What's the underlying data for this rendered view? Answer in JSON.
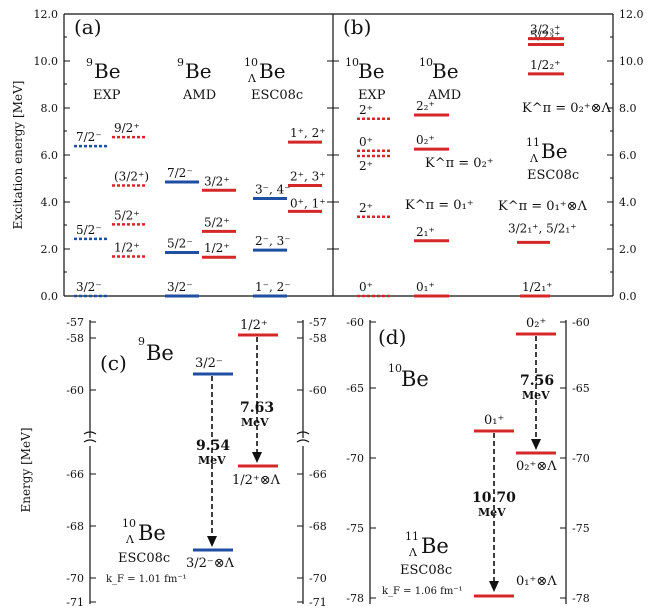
{
  "panel_a": {
    "label": "(a)",
    "ylabel": "Excitation energy [MeV]",
    "col_exp": {
      "name": "9Be",
      "sup": "9",
      "sym": "Be",
      "sub": "EXP"
    },
    "col_amd": {
      "name": "9Be",
      "sup": "9",
      "sym": "Be",
      "sub": "AMD"
    },
    "col_esc": {
      "sup": "10",
      "lam": "Λ",
      "sym": "Be",
      "sub": "ESC08c"
    },
    "yticks": [
      "0.0",
      "2.0",
      "4.0",
      "6.0",
      "8.0",
      "10.0",
      "12.0"
    ],
    "levels": {
      "exp": [
        {
          "label": "3/2⁻",
          "e": 0.0
        },
        {
          "label": "5/2⁻",
          "e": 2.43
        },
        {
          "label": "1/2⁺",
          "e": 1.68
        },
        {
          "label": "5/2⁺",
          "e": 3.05
        },
        {
          "label": "(3/2⁺)",
          "e": 4.7
        },
        {
          "label": "7/2⁻",
          "e": 6.38
        },
        {
          "label": "9/2⁺",
          "e": 6.76
        }
      ],
      "amd": [
        {
          "label": "3/2⁻",
          "e": 0.0
        },
        {
          "label": "5/2⁻",
          "e": 1.85
        },
        {
          "label": "1/2⁺",
          "e": 1.65
        },
        {
          "label": "5/2⁺",
          "e": 2.75
        },
        {
          "label": "3/2⁺",
          "e": 4.5
        },
        {
          "label": "7/2⁻",
          "e": 4.85
        }
      ],
      "esc": [
        {
          "label": "1⁻, 2⁻",
          "e": 0.0
        },
        {
          "label": "2⁻, 3⁻",
          "e": 1.95
        },
        {
          "label": "3⁻, 4⁻",
          "e": 4.15
        },
        {
          "label": "0⁺, 1⁺",
          "e": 3.6
        },
        {
          "label": "2⁺, 3⁺",
          "e": 4.7
        },
        {
          "label": "1⁺, 2⁺",
          "e": 6.55
        }
      ]
    }
  },
  "panel_b": {
    "label": "(b)",
    "col_exp": {
      "sup": "10",
      "sym": "Be",
      "sub": "EXP"
    },
    "col_amd": {
      "sup": "10",
      "sym": "Be",
      "sub": "AMD"
    },
    "col_esc": {
      "sup": "11",
      "lam": "Λ",
      "sym": "Be",
      "sub": "ESC08c"
    },
    "yticks": [
      "0.0",
      "2.0",
      "4.0",
      "6.0",
      "8.0",
      "10.0",
      "12.0"
    ],
    "levels": {
      "exp": [
        {
          "label": "0⁺",
          "e": 0.0
        },
        {
          "label": "2⁺",
          "e": 3.37
        },
        {
          "label": "2⁺",
          "e": 5.96
        },
        {
          "label": "0⁺",
          "e": 6.18
        },
        {
          "label": "2⁺",
          "e": 7.54
        }
      ],
      "amd": [
        {
          "label": "0₁⁺",
          "e": 0.0
        },
        {
          "label": "2₁⁺",
          "e": 2.35
        },
        {
          "label": "0₂⁺",
          "e": 6.25
        },
        {
          "label": "2₂⁺",
          "e": 7.7
        }
      ],
      "esc": [
        {
          "label": "1/2₁⁺",
          "e": 0.0
        },
        {
          "label": "3/2₁⁺, 5/2₁⁺",
          "e": 2.28
        },
        {
          "label": "1/2₂⁺",
          "e": 9.45
        },
        {
          "label": "5/2₃⁺",
          "e": 10.7
        },
        {
          "label": "3/2₃⁺",
          "e": 10.95
        }
      ]
    },
    "k_annotations": [
      "K^π = 0₁⁺",
      "K^π = 0₂⁺",
      "K^π = 0₁⁺⊗Λ",
      "K^π = 0₂⁺⊗Λ"
    ]
  },
  "panel_c": {
    "label": "(c)",
    "ylabel": "Energy [MeV]",
    "nucleus": {
      "sup": "9",
      "sym": "Be"
    },
    "hyper": {
      "sup": "10",
      "lam": "Λ",
      "sym": "Be",
      "sub": "ESC08c",
      "kf": "k_F = 1.01 fm⁻¹"
    },
    "yticks_top": [
      "-57",
      "-58",
      "-60"
    ],
    "yticks_bottom": [
      "-66",
      "-68",
      "-70",
      "-71"
    ],
    "levels": [
      {
        "label": "1/2⁺",
        "e": -57.75
      },
      {
        "label": "3/2⁻",
        "e": -59.3
      },
      {
        "label": "1/2⁺⊗Λ",
        "e": -65.38
      },
      {
        "label": "3/2⁻⊗Λ",
        "e": -68.84
      }
    ],
    "arrows": [
      {
        "value": "7.63",
        "unit": "MeV"
      },
      {
        "value": "9.54",
        "unit": "MeV"
      }
    ]
  },
  "panel_d": {
    "label": "(d)",
    "nucleus": {
      "sup": "10",
      "sym": "Be"
    },
    "hyper": {
      "sup": "11",
      "lam": "Λ",
      "sym": "Be",
      "sub": "ESC08c",
      "kf": "k_F = 1.06 fm⁻¹"
    },
    "yticks": [
      "-60",
      "-65",
      "-70",
      "-75",
      "-78"
    ],
    "levels": [
      {
        "label": "0₂⁺",
        "e": -61.0
      },
      {
        "label": "0₁⁺",
        "e": -67.1
      },
      {
        "label": "0₂⁺⊗Λ",
        "e": -68.56
      },
      {
        "label": "0₁⁺⊗Λ",
        "e": -77.8
      }
    ],
    "arrows": [
      {
        "value": "7.56",
        "unit": "MeV"
      },
      {
        "value": "10.70",
        "unit": "MeV"
      }
    ]
  }
}
